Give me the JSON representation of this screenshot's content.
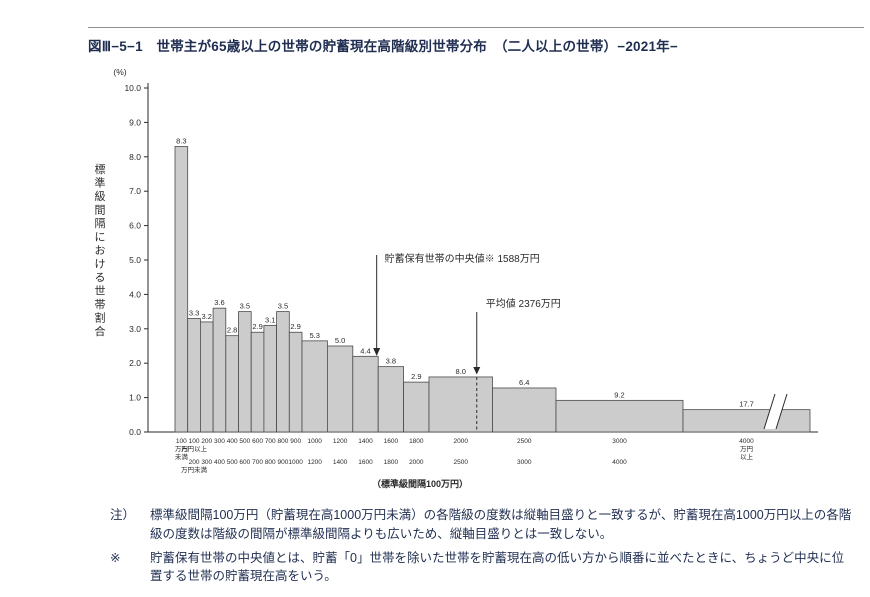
{
  "figure": {
    "title": "図Ⅲ−5−1　世帯主が65歳以上の世帯の貯蓄現在高階級別世帯分布　（二人以上の世帯）−2021年−"
  },
  "chart_data": {
    "type": "bar",
    "subtype": "histogram-standard-class-interval",
    "title": "世帯主が65歳以上の世帯の貯蓄現在高階級別世帯分布（二人以上の世帯）2021年",
    "ylabel": "標準級間隔における世帯割合",
    "y_unit_label": "(%)",
    "xlabel": "（標準級間隔100万円）",
    "ylim": [
      0,
      10
    ],
    "ytick_labels": [
      "0.0",
      "1.0",
      "2.0",
      "3.0",
      "4.0",
      "5.0",
      "6.0",
      "7.0",
      "8.0",
      "9.0",
      "10.0"
    ],
    "grid": false,
    "legend_position": "none",
    "bars": [
      {
        "label": "100万円未満",
        "value": 8.3,
        "start": 0,
        "width": 1,
        "tick_top": [
          "100",
          "万円",
          "未満"
        ]
      },
      {
        "label": "100万円以上200万円未満",
        "value": 3.3,
        "start": 1,
        "width": 1,
        "tick_top": [
          "100",
          "万円以上"
        ],
        "tick_bottom": [
          "200",
          "万円未満"
        ]
      },
      {
        "label": "200〜300万円",
        "value": 3.2,
        "start": 2,
        "width": 1,
        "tick_top": [
          "200"
        ],
        "tick_bottom": [
          "300"
        ]
      },
      {
        "label": "300〜400万円",
        "value": 3.6,
        "start": 3,
        "width": 1,
        "tick_top": [
          "300"
        ],
        "tick_bottom": [
          "400"
        ]
      },
      {
        "label": "400〜500万円",
        "value": 2.8,
        "start": 4,
        "width": 1,
        "tick_top": [
          "400"
        ],
        "tick_bottom": [
          "500"
        ]
      },
      {
        "label": "500〜600万円",
        "value": 3.5,
        "start": 5,
        "width": 1,
        "tick_top": [
          "500"
        ],
        "tick_bottom": [
          "600"
        ]
      },
      {
        "label": "600〜700万円",
        "value": 2.9,
        "start": 6,
        "width": 1,
        "tick_top": [
          "600"
        ],
        "tick_bottom": [
          "700"
        ]
      },
      {
        "label": "700〜800万円",
        "value": 3.1,
        "start": 7,
        "width": 1,
        "tick_top": [
          "700"
        ],
        "tick_bottom": [
          "800"
        ]
      },
      {
        "label": "800〜900万円",
        "value": 3.5,
        "start": 8,
        "width": 1,
        "tick_top": [
          "800"
        ],
        "tick_bottom": [
          "900"
        ]
      },
      {
        "label": "900〜1000万円",
        "value": 2.9,
        "start": 9,
        "width": 1,
        "tick_top": [
          "900"
        ],
        "tick_bottom": [
          "1000"
        ]
      },
      {
        "label": "1000〜1200万円",
        "value": 5.3,
        "start": 10,
        "width": 2,
        "tick_top": [
          "1000"
        ],
        "tick_bottom": [
          "1200"
        ]
      },
      {
        "label": "1200〜1400万円",
        "value": 5.0,
        "start": 12,
        "width": 2,
        "tick_top": [
          "1200"
        ],
        "tick_bottom": [
          "1400"
        ]
      },
      {
        "label": "1400〜1600万円",
        "value": 4.4,
        "start": 14,
        "width": 2,
        "tick_top": [
          "1400"
        ],
        "tick_bottom": [
          "1600"
        ]
      },
      {
        "label": "1600〜1800万円",
        "value": 3.8,
        "start": 16,
        "width": 2,
        "tick_top": [
          "1600"
        ],
        "tick_bottom": [
          "1800"
        ]
      },
      {
        "label": "1800〜2000万円",
        "value": 2.9,
        "start": 18,
        "width": 2,
        "tick_top": [
          "1800"
        ],
        "tick_bottom": [
          "2000"
        ]
      },
      {
        "label": "2000〜2500万円",
        "value": 8.0,
        "start": 20,
        "width": 5,
        "tick_top": [
          "2000"
        ],
        "tick_bottom": [
          "2500"
        ]
      },
      {
        "label": "2500〜3000万円",
        "value": 6.4,
        "start": 25,
        "width": 5,
        "tick_top": [
          "2500"
        ],
        "tick_bottom": [
          "3000"
        ]
      },
      {
        "label": "3000〜4000万円",
        "value": 9.2,
        "start": 30,
        "width": 10,
        "tick_top": [
          "3000"
        ],
        "tick_bottom": [
          "4000"
        ]
      },
      {
        "label": "4000万円以上",
        "value": 17.7,
        "start": 40,
        "width": 10,
        "open_ended": true,
        "display_height": 0.65,
        "tick_top": [
          "4000",
          "万円",
          "以上"
        ]
      }
    ],
    "median": {
      "label": "貯蓄保有世帯の中央値※ 1588万円",
      "value_manen": 1588,
      "x_unit": 15.88
    },
    "mean": {
      "label": "平均値 2376万円",
      "value_manen": 2376,
      "x_unit": 23.76
    },
    "colors": {
      "bar_fill": "#cccccc",
      "bar_stroke": "#4a4a4a",
      "ink": "#2a2a2a",
      "heading_text": "#1f2d50"
    }
  },
  "notes": [
    {
      "prefix": "注）",
      "text": "標準級間隔100万円（貯蓄現在高1000万円未満）の各階級の度数は縦軸目盛りと一致するが、貯蓄現在高1000万円以上の各階級の度数は階級の間隔が標準級間隔よりも広いため、縦軸目盛りとは一致しない。"
    },
    {
      "prefix": "※",
      "text": "貯蓄保有世帯の中央値とは、貯蓄「0」世帯を除いた世帯を貯蓄現在高の低い方から順番に並べたときに、ちょうど中央に位置する世帯の貯蓄現在高をいう。"
    }
  ]
}
